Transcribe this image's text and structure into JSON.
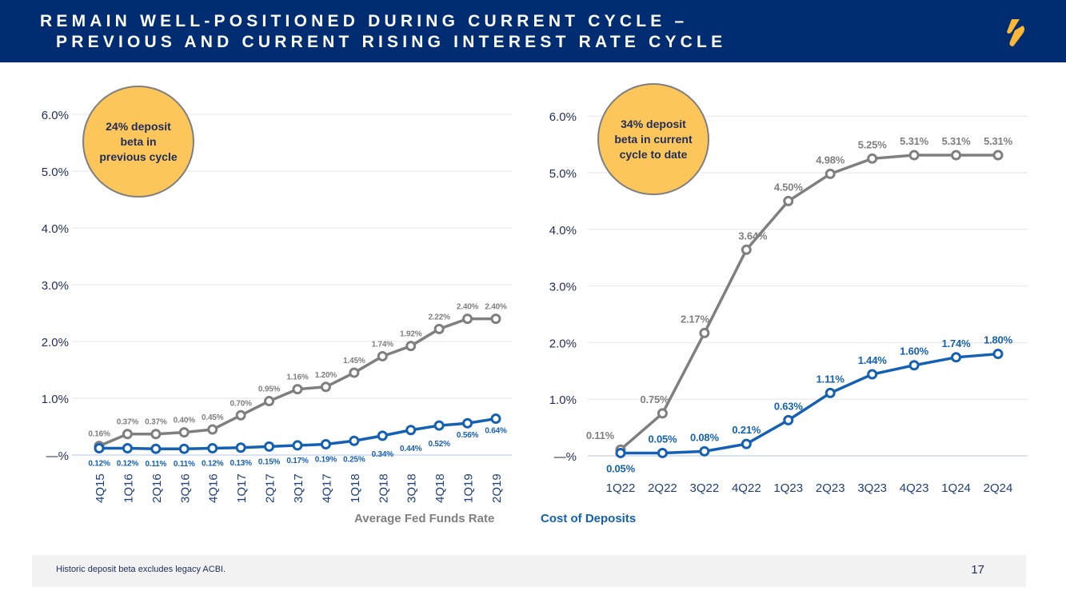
{
  "header": {
    "title_line1": "REMAIN WELL-POSITIONED DURING CURRENT CYCLE –",
    "title_line2": "PREVIOUS AND CURRENT RISING INTEREST RATE CYCLE",
    "logo": "synovus-s-logo",
    "background": "#002d72",
    "logo_color": "#fdb736"
  },
  "legend": {
    "fed": "Average Fed Funds Rate",
    "cost": "Cost of Deposits"
  },
  "footer": {
    "note": "Historic deposit beta excludes legacy ACBI.",
    "page_number": "17"
  },
  "colors": {
    "fed": "#7f7f7f",
    "cost": "#1460b4",
    "bubble": "#fcc65a"
  },
  "chart_data": [
    {
      "type": "line",
      "callout": "24% deposit beta in previous cycle",
      "ylim": [
        0,
        6
      ],
      "yticks": [
        "—%",
        "1.0%",
        "2.0%",
        "3.0%",
        "4.0%",
        "5.0%",
        "6.0%"
      ],
      "grid": true,
      "xlabel_rotation": "vertical",
      "categories": [
        "4Q15",
        "1Q16",
        "2Q16",
        "3Q16",
        "4Q16",
        "1Q17",
        "2Q17",
        "3Q17",
        "4Q17",
        "1Q18",
        "2Q18",
        "3Q18",
        "4Q18",
        "1Q19",
        "2Q19"
      ],
      "series": [
        {
          "name": "Average Fed Funds Rate",
          "values": [
            0.16,
            0.37,
            0.37,
            0.4,
            0.45,
            0.7,
            0.95,
            1.16,
            1.2,
            1.45,
            1.74,
            1.92,
            2.22,
            2.4,
            2.4
          ],
          "labels": [
            "0.16%",
            "0.37%",
            "0.37%",
            "0.40%",
            "0.45%",
            "0.70%",
            "0.95%",
            "1.16%",
            "1.20%",
            "1.45%",
            "1.74%",
            "1.92%",
            "2.22%",
            "2.40%",
            "2.40%"
          ]
        },
        {
          "name": "Cost of Deposits",
          "values": [
            0.12,
            0.12,
            0.11,
            0.11,
            0.12,
            0.13,
            0.15,
            0.17,
            0.19,
            0.25,
            0.34,
            0.44,
            0.52,
            0.56,
            0.64
          ],
          "labels": [
            "0.12%",
            "0.12%",
            "0.11%",
            "0.11%",
            "0.12%",
            "0.13%",
            "0.15%",
            "0.17%",
            "0.19%",
            "0.25%",
            "0.34%",
            "0.44%",
            "0.52%",
            "0.56%",
            "0.64%"
          ]
        }
      ]
    },
    {
      "type": "line",
      "callout": "34% deposit beta in current cycle to date",
      "ylim": [
        0,
        6
      ],
      "yticks": [
        "—%",
        "1.0%",
        "2.0%",
        "3.0%",
        "4.0%",
        "5.0%",
        "6.0%"
      ],
      "grid": true,
      "categories": [
        "1Q22",
        "2Q22",
        "3Q22",
        "4Q22",
        "1Q23",
        "2Q23",
        "3Q23",
        "4Q23",
        "1Q24",
        "2Q24"
      ],
      "series": [
        {
          "name": "Average Fed Funds Rate",
          "values": [
            0.11,
            0.75,
            2.17,
            3.64,
            4.5,
            4.98,
            5.25,
            5.31,
            5.31,
            5.31
          ],
          "labels": [
            "0.11%",
            "0.75%",
            "2.17%",
            "3.64%",
            "4.50%",
            "4.98%",
            "5.25%",
            "5.31%",
            "5.31%",
            "5.31%"
          ]
        },
        {
          "name": "Cost of Deposits",
          "values": [
            0.05,
            0.05,
            0.08,
            0.21,
            0.63,
            1.11,
            1.44,
            1.6,
            1.74,
            1.8
          ],
          "labels": [
            "0.05%",
            "0.05%",
            "0.08%",
            "0.21%",
            "0.63%",
            "1.11%",
            "1.44%",
            "1.60%",
            "1.74%",
            "1.80%"
          ]
        }
      ]
    }
  ]
}
